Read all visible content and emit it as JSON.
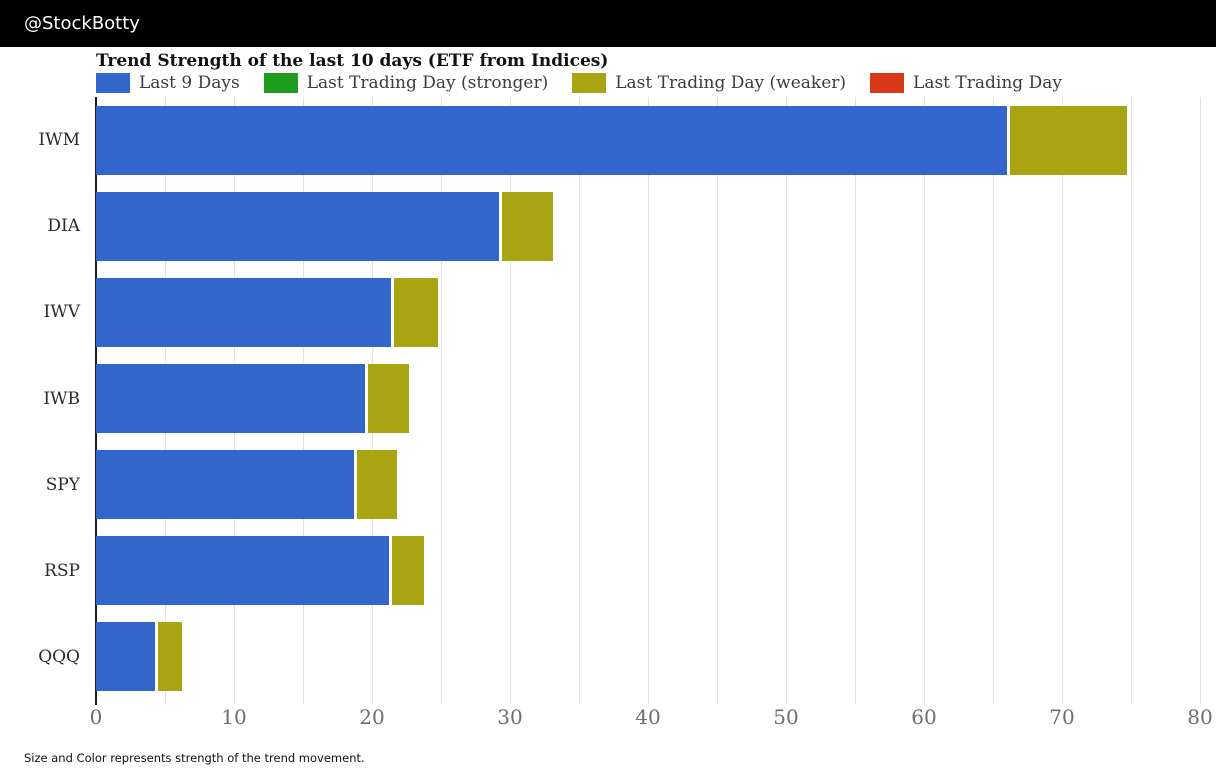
{
  "header": {
    "handle": "@StockBotty"
  },
  "chart": {
    "title": "Trend Strength of the last 10 days (ETF from Indices)",
    "footnote": "Size and Color represents strength of the trend movement."
  },
  "colors": {
    "header_bg": "#000000",
    "gridline": "#e2e2e2",
    "axis_spine": "#1c1c1c",
    "tick_label": "#6e6e6e",
    "legend_text": "#3c3c3c"
  },
  "chart_data": {
    "type": "bar",
    "orientation": "horizontal",
    "stacked": true,
    "title": "Trend Strength of the last 10 days (ETF from Indices)",
    "categories": [
      "IWM",
      "DIA",
      "IWV",
      "IWB",
      "SPY",
      "RSP",
      "QQQ"
    ],
    "series": [
      {
        "name": "Last 9 Days",
        "color": "#3266cb",
        "values": [
          66.0,
          29.2,
          21.4,
          19.5,
          18.7,
          21.2,
          4.3
        ]
      },
      {
        "name": "Last Trading Day (stronger)",
        "color": "#1f9d1f",
        "values": [
          0,
          0,
          0,
          0,
          0,
          0,
          0
        ]
      },
      {
        "name": "Last Trading Day (weaker)",
        "color": "#a8a412",
        "values": [
          8.7,
          3.9,
          3.4,
          3.2,
          3.1,
          2.6,
          1.9
        ]
      },
      {
        "name": "Last Trading Day",
        "color": "#d93916",
        "values": [
          0,
          0,
          0,
          0,
          0,
          0,
          0
        ]
      }
    ],
    "totals": [
      74.7,
      33.1,
      24.8,
      22.7,
      21.8,
      23.8,
      6.2
    ],
    "x_axis": {
      "min": 0,
      "max": 80,
      "ticks": [
        0,
        10,
        20,
        30,
        40,
        50,
        60,
        70,
        80
      ],
      "grid_interval": 5
    },
    "legend_position": "top",
    "grid": true
  }
}
